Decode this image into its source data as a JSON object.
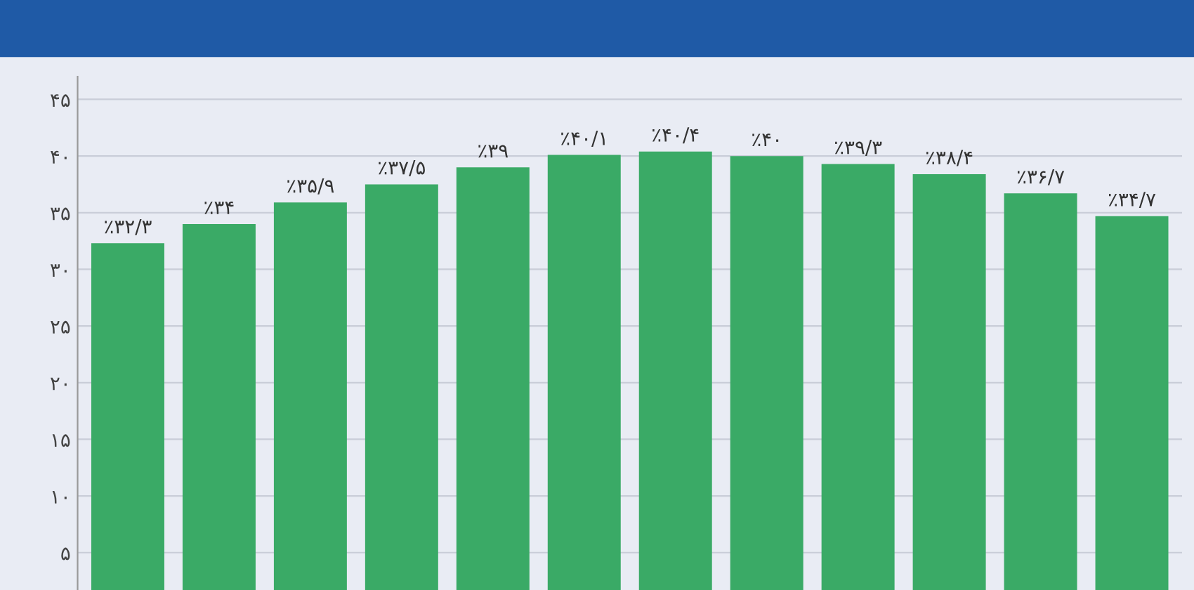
{
  "chart_data": {
    "type": "bar",
    "categories": [
      null,
      null,
      null,
      null,
      null,
      null,
      null,
      null,
      null,
      null,
      null,
      null
    ],
    "values": [
      32.3,
      34,
      35.9,
      37.5,
      39,
      40.1,
      40.4,
      40,
      39.3,
      38.4,
      36.7,
      34.7
    ],
    "value_labels": [
      "٪۳۲/۳",
      "٪۳۴",
      "٪۳۵/۹",
      "٪۳۷/۵",
      "٪۳۹",
      "٪۴۰/۱",
      "٪۴۰/۴",
      "٪۴۰",
      "٪۳۹/۳",
      "٪۳۸/۴",
      "٪۳۶/۷",
      "٪۳۴/۷"
    ],
    "color": "#3aaa66",
    "ylim": [
      1.7,
      47
    ],
    "yticks": [
      {
        "value": 5,
        "label": "۵"
      },
      {
        "value": 10,
        "label": "۱۰"
      },
      {
        "value": 15,
        "label": "۱۵"
      },
      {
        "value": 20,
        "label": "۲۰"
      },
      {
        "value": 25,
        "label": "۲۵"
      },
      {
        "value": 30,
        "label": "۳۰"
      },
      {
        "value": 35,
        "label": "۳۵"
      },
      {
        "value": 40,
        "label": "۴۰"
      },
      {
        "value": 45,
        "label": "۴۵"
      }
    ],
    "grid": "y",
    "tick_labels": "y"
  }
}
